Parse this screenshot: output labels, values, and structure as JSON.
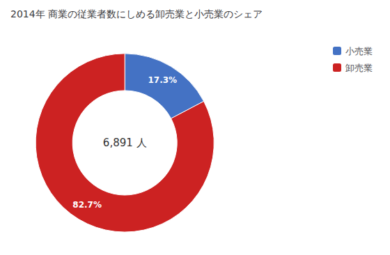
{
  "chart_data": {
    "type": "pie",
    "title": "2014年 商業の従業者数にしめる卸売業と小売業のシェア",
    "categories": [
      "小売業",
      "卸売業"
    ],
    "values": [
      17.3,
      82.7
    ],
    "value_labels": [
      "17.3%",
      "82.7%"
    ],
    "colors": [
      "#4472C4",
      "#CC2222"
    ],
    "data_labels": true,
    "annotations": [
      "6,891 人"
    ],
    "legend": "upper right"
  }
}
